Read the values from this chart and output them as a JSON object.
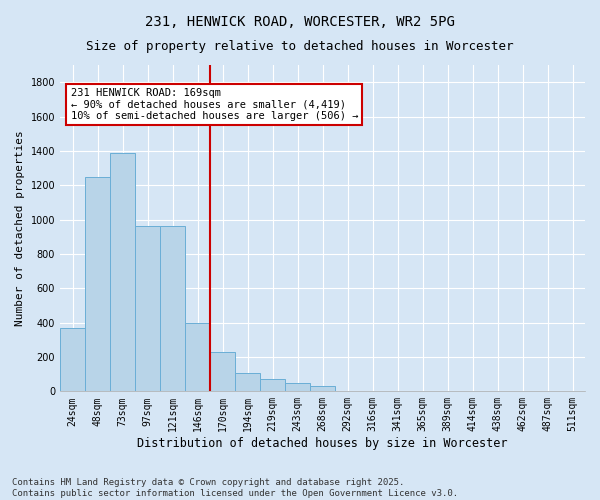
{
  "title1": "231, HENWICK ROAD, WORCESTER, WR2 5PG",
  "title2": "Size of property relative to detached houses in Worcester",
  "xlabel": "Distribution of detached houses by size in Worcester",
  "ylabel": "Number of detached properties",
  "categories": [
    "24sqm",
    "48sqm",
    "73sqm",
    "97sqm",
    "121sqm",
    "146sqm",
    "170sqm",
    "194sqm",
    "219sqm",
    "243sqm",
    "268sqm",
    "292sqm",
    "316sqm",
    "341sqm",
    "365sqm",
    "389sqm",
    "414sqm",
    "438sqm",
    "462sqm",
    "487sqm",
    "511sqm"
  ],
  "values": [
    370,
    1250,
    1390,
    960,
    960,
    400,
    230,
    105,
    70,
    50,
    30,
    0,
    0,
    0,
    0,
    0,
    0,
    0,
    0,
    0,
    0
  ],
  "bar_color": "#b8d4e8",
  "bar_edge_color": "#6aaed6",
  "vline_index": 6,
  "vline_color": "#cc0000",
  "annotation_line1": "231 HENWICK ROAD: 169sqm",
  "annotation_line2": "← 90% of detached houses are smaller (4,419)",
  "annotation_line3": "10% of semi-detached houses are larger (506) →",
  "annotation_box_color": "#cc0000",
  "ylim": [
    0,
    1900
  ],
  "yticks": [
    0,
    200,
    400,
    600,
    800,
    1000,
    1200,
    1400,
    1600,
    1800
  ],
  "background_color": "#d6e6f5",
  "plot_bg_color": "#d6e6f5",
  "footer1": "Contains HM Land Registry data © Crown copyright and database right 2025.",
  "footer2": "Contains public sector information licensed under the Open Government Licence v3.0.",
  "title1_fontsize": 10,
  "title2_fontsize": 9,
  "xlabel_fontsize": 8.5,
  "ylabel_fontsize": 8,
  "tick_fontsize": 7,
  "footer_fontsize": 6.5,
  "annotation_fontsize": 7.5
}
